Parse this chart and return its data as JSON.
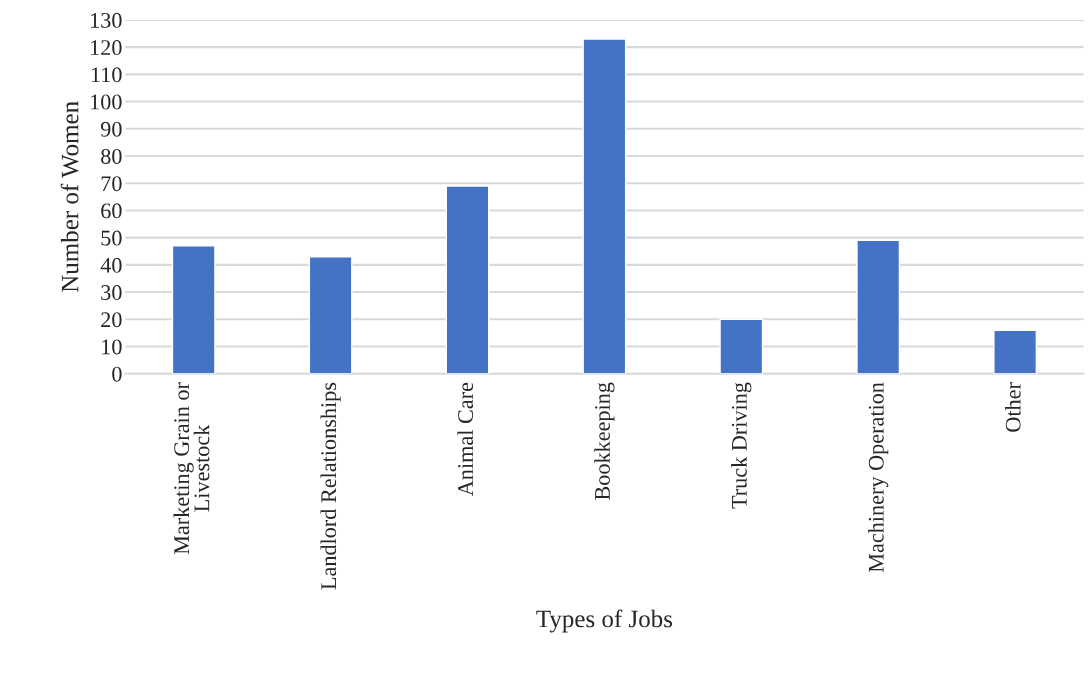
{
  "chart_data": {
    "type": "bar",
    "xlabel": "Types of Jobs",
    "ylabel": "Number of Women",
    "categories": [
      "Marketing Grain or\nLivestock",
      "Landlord Relationships",
      "Animal Care",
      "Bookkeeping",
      "Truck Driving",
      "Machinery Operation",
      "Other"
    ],
    "values": [
      47,
      43,
      69,
      123,
      20,
      49,
      16
    ],
    "color": "#4472c4",
    "ylim": [
      0,
      130
    ],
    "yticks": [
      0,
      10,
      20,
      30,
      40,
      50,
      60,
      70,
      80,
      90,
      100,
      110,
      120,
      130
    ],
    "grid": "y",
    "legend": false
  }
}
